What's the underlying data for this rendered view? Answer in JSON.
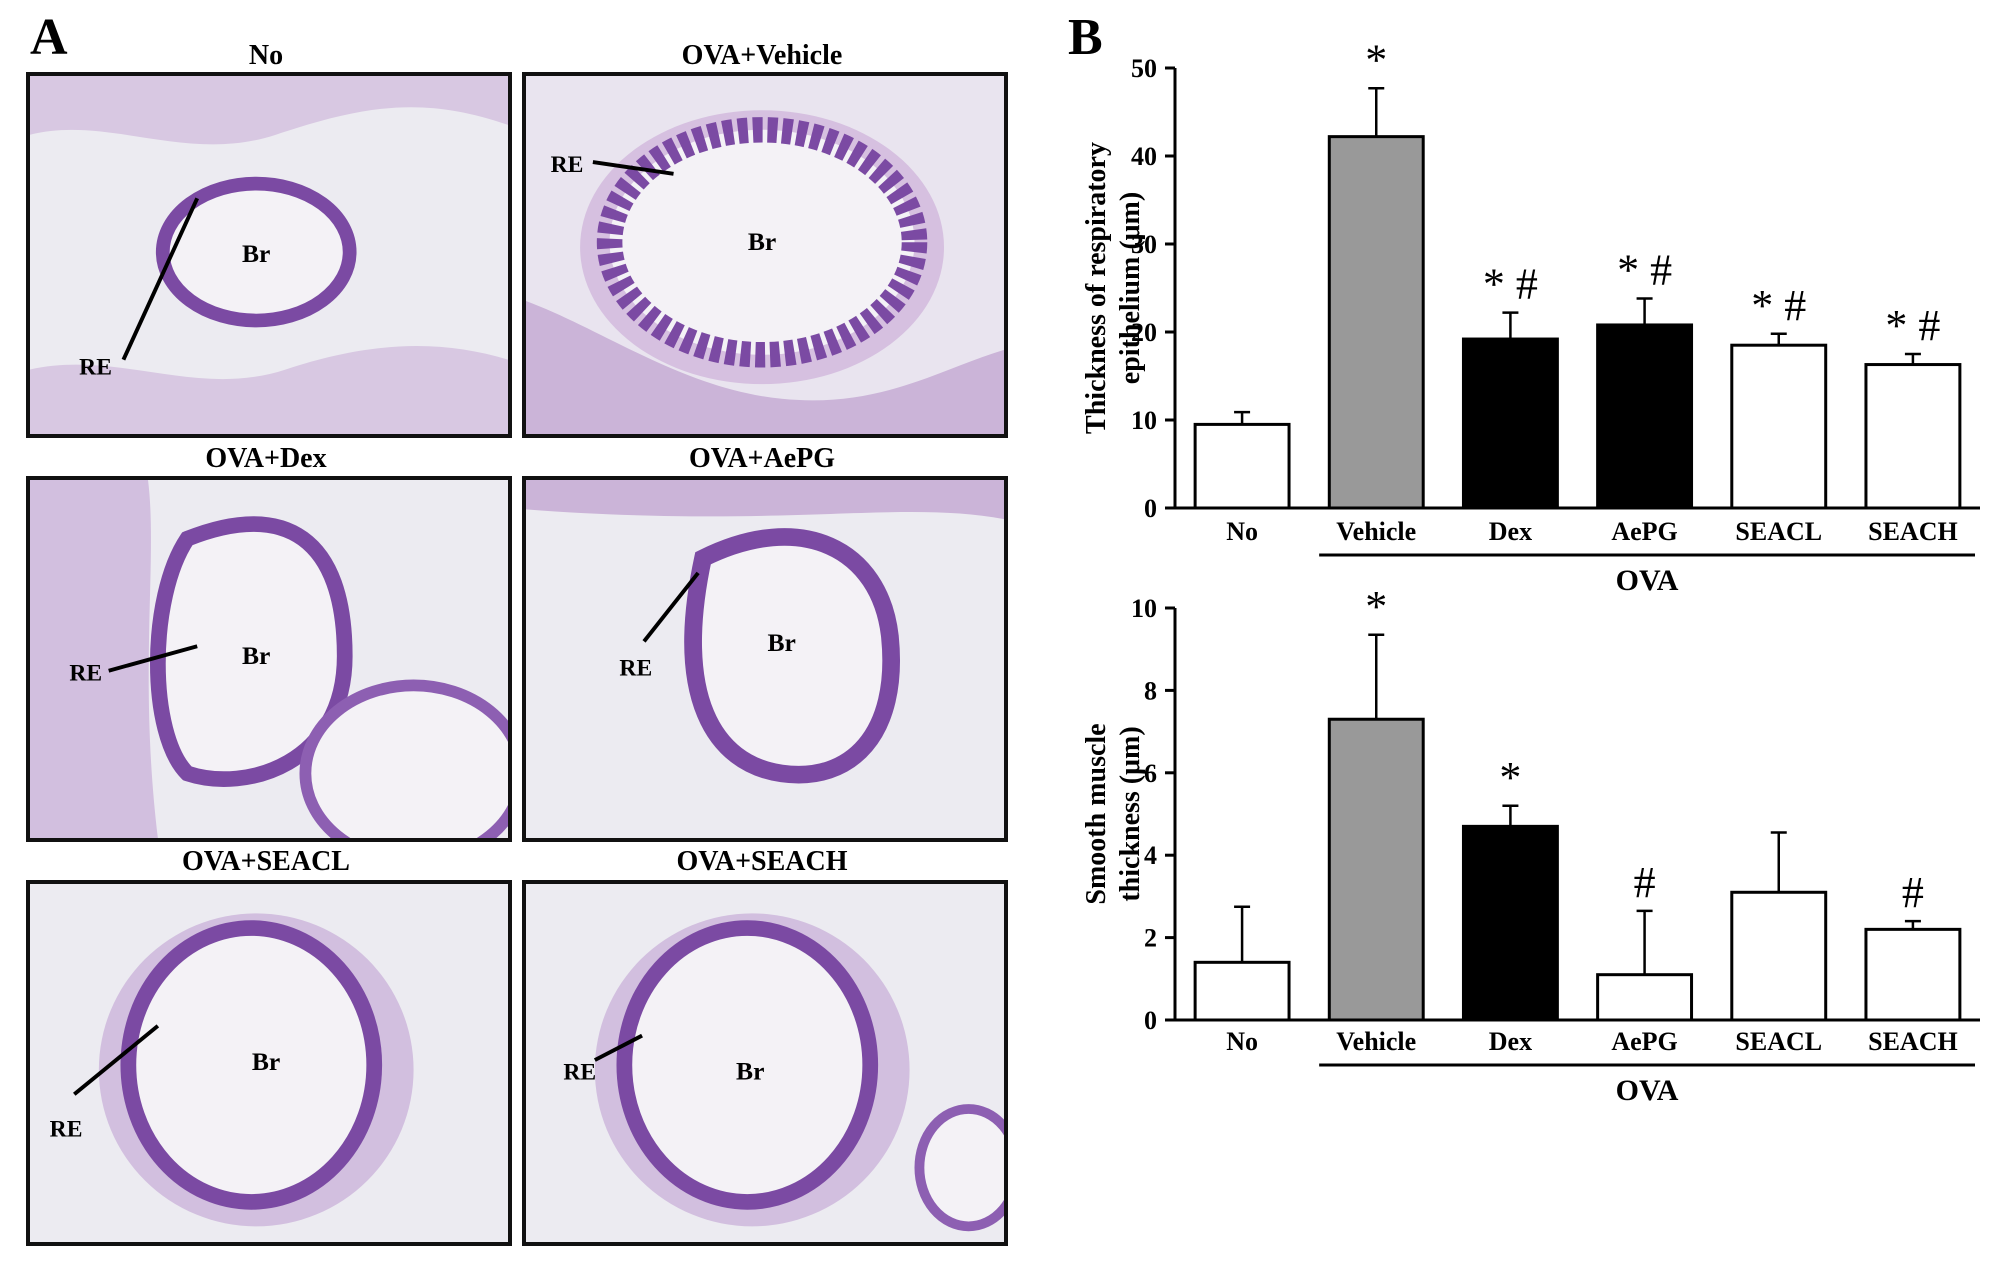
{
  "panel_a": {
    "letter": "A",
    "panels": [
      {
        "title": "No",
        "lumen_label": "Br",
        "epithelium_label": "RE"
      },
      {
        "title": "OVA+Vehicle",
        "lumen_label": "Br",
        "epithelium_label": "RE"
      },
      {
        "title": "OVA+Dex",
        "lumen_label": "Br",
        "epithelium_label": "RE"
      },
      {
        "title": "OVA+AePG",
        "lumen_label": "Br",
        "epithelium_label": "RE"
      },
      {
        "title": "OVA+SEACL",
        "lumen_label": "Br",
        "epithelium_label": "RE"
      },
      {
        "title": "OVA+SEACH",
        "lumen_label": "Br",
        "epithelium_label": "RE"
      }
    ],
    "colors": {
      "tissue": "#c9b6d6",
      "nuclei": "#5a3f8f",
      "epithelium": "#7b4aa3",
      "lumen": "#f4f2f6",
      "background": "#ecebf1"
    }
  },
  "panel_b": {
    "letter": "B"
  },
  "chart_data": [
    {
      "type": "bar",
      "categories": [
        "No",
        "Vehicle",
        "Dex",
        "AePG",
        "SEACL",
        "SEACH"
      ],
      "values": [
        9.5,
        42.2,
        19.2,
        20.8,
        18.5,
        16.3
      ],
      "errors": [
        1.4,
        5.5,
        3.0,
        3.0,
        1.3,
        1.2
      ],
      "bar_colors": [
        "#ffffff",
        "#999999",
        "#000000",
        "#000000",
        "#ffffff",
        "#ffffff"
      ],
      "annotations": [
        "",
        "*",
        "* #",
        "* #",
        "* #",
        "* #"
      ],
      "ylabel_lines": [
        "Thickness of respiratory",
        "epithelium (μm)"
      ],
      "ylim": [
        0,
        50
      ],
      "yticks": [
        0,
        10,
        20,
        30,
        40,
        50
      ],
      "group_label": "OVA",
      "group_categories": [
        "Vehicle",
        "Dex",
        "AePG",
        "SEACL",
        "SEACH"
      ]
    },
    {
      "type": "bar",
      "categories": [
        "No",
        "Vehicle",
        "Dex",
        "AePG",
        "SEACL",
        "SEACH"
      ],
      "values": [
        1.4,
        7.3,
        4.7,
        1.1,
        3.1,
        2.2
      ],
      "errors": [
        1.35,
        2.05,
        0.5,
        1.55,
        1.45,
        0.2
      ],
      "bar_colors": [
        "#ffffff",
        "#999999",
        "#000000",
        "#ffffff",
        "#ffffff",
        "#ffffff"
      ],
      "annotations": [
        "",
        "*",
        "*",
        "#",
        "",
        "#"
      ],
      "ylabel_lines": [
        "Smooth muscle",
        "thickness (μm)"
      ],
      "ylim": [
        0,
        10
      ],
      "yticks": [
        0,
        2,
        4,
        6,
        8,
        10
      ],
      "group_label": "OVA",
      "group_categories": [
        "Vehicle",
        "Dex",
        "AePG",
        "SEACL",
        "SEACH"
      ]
    }
  ]
}
